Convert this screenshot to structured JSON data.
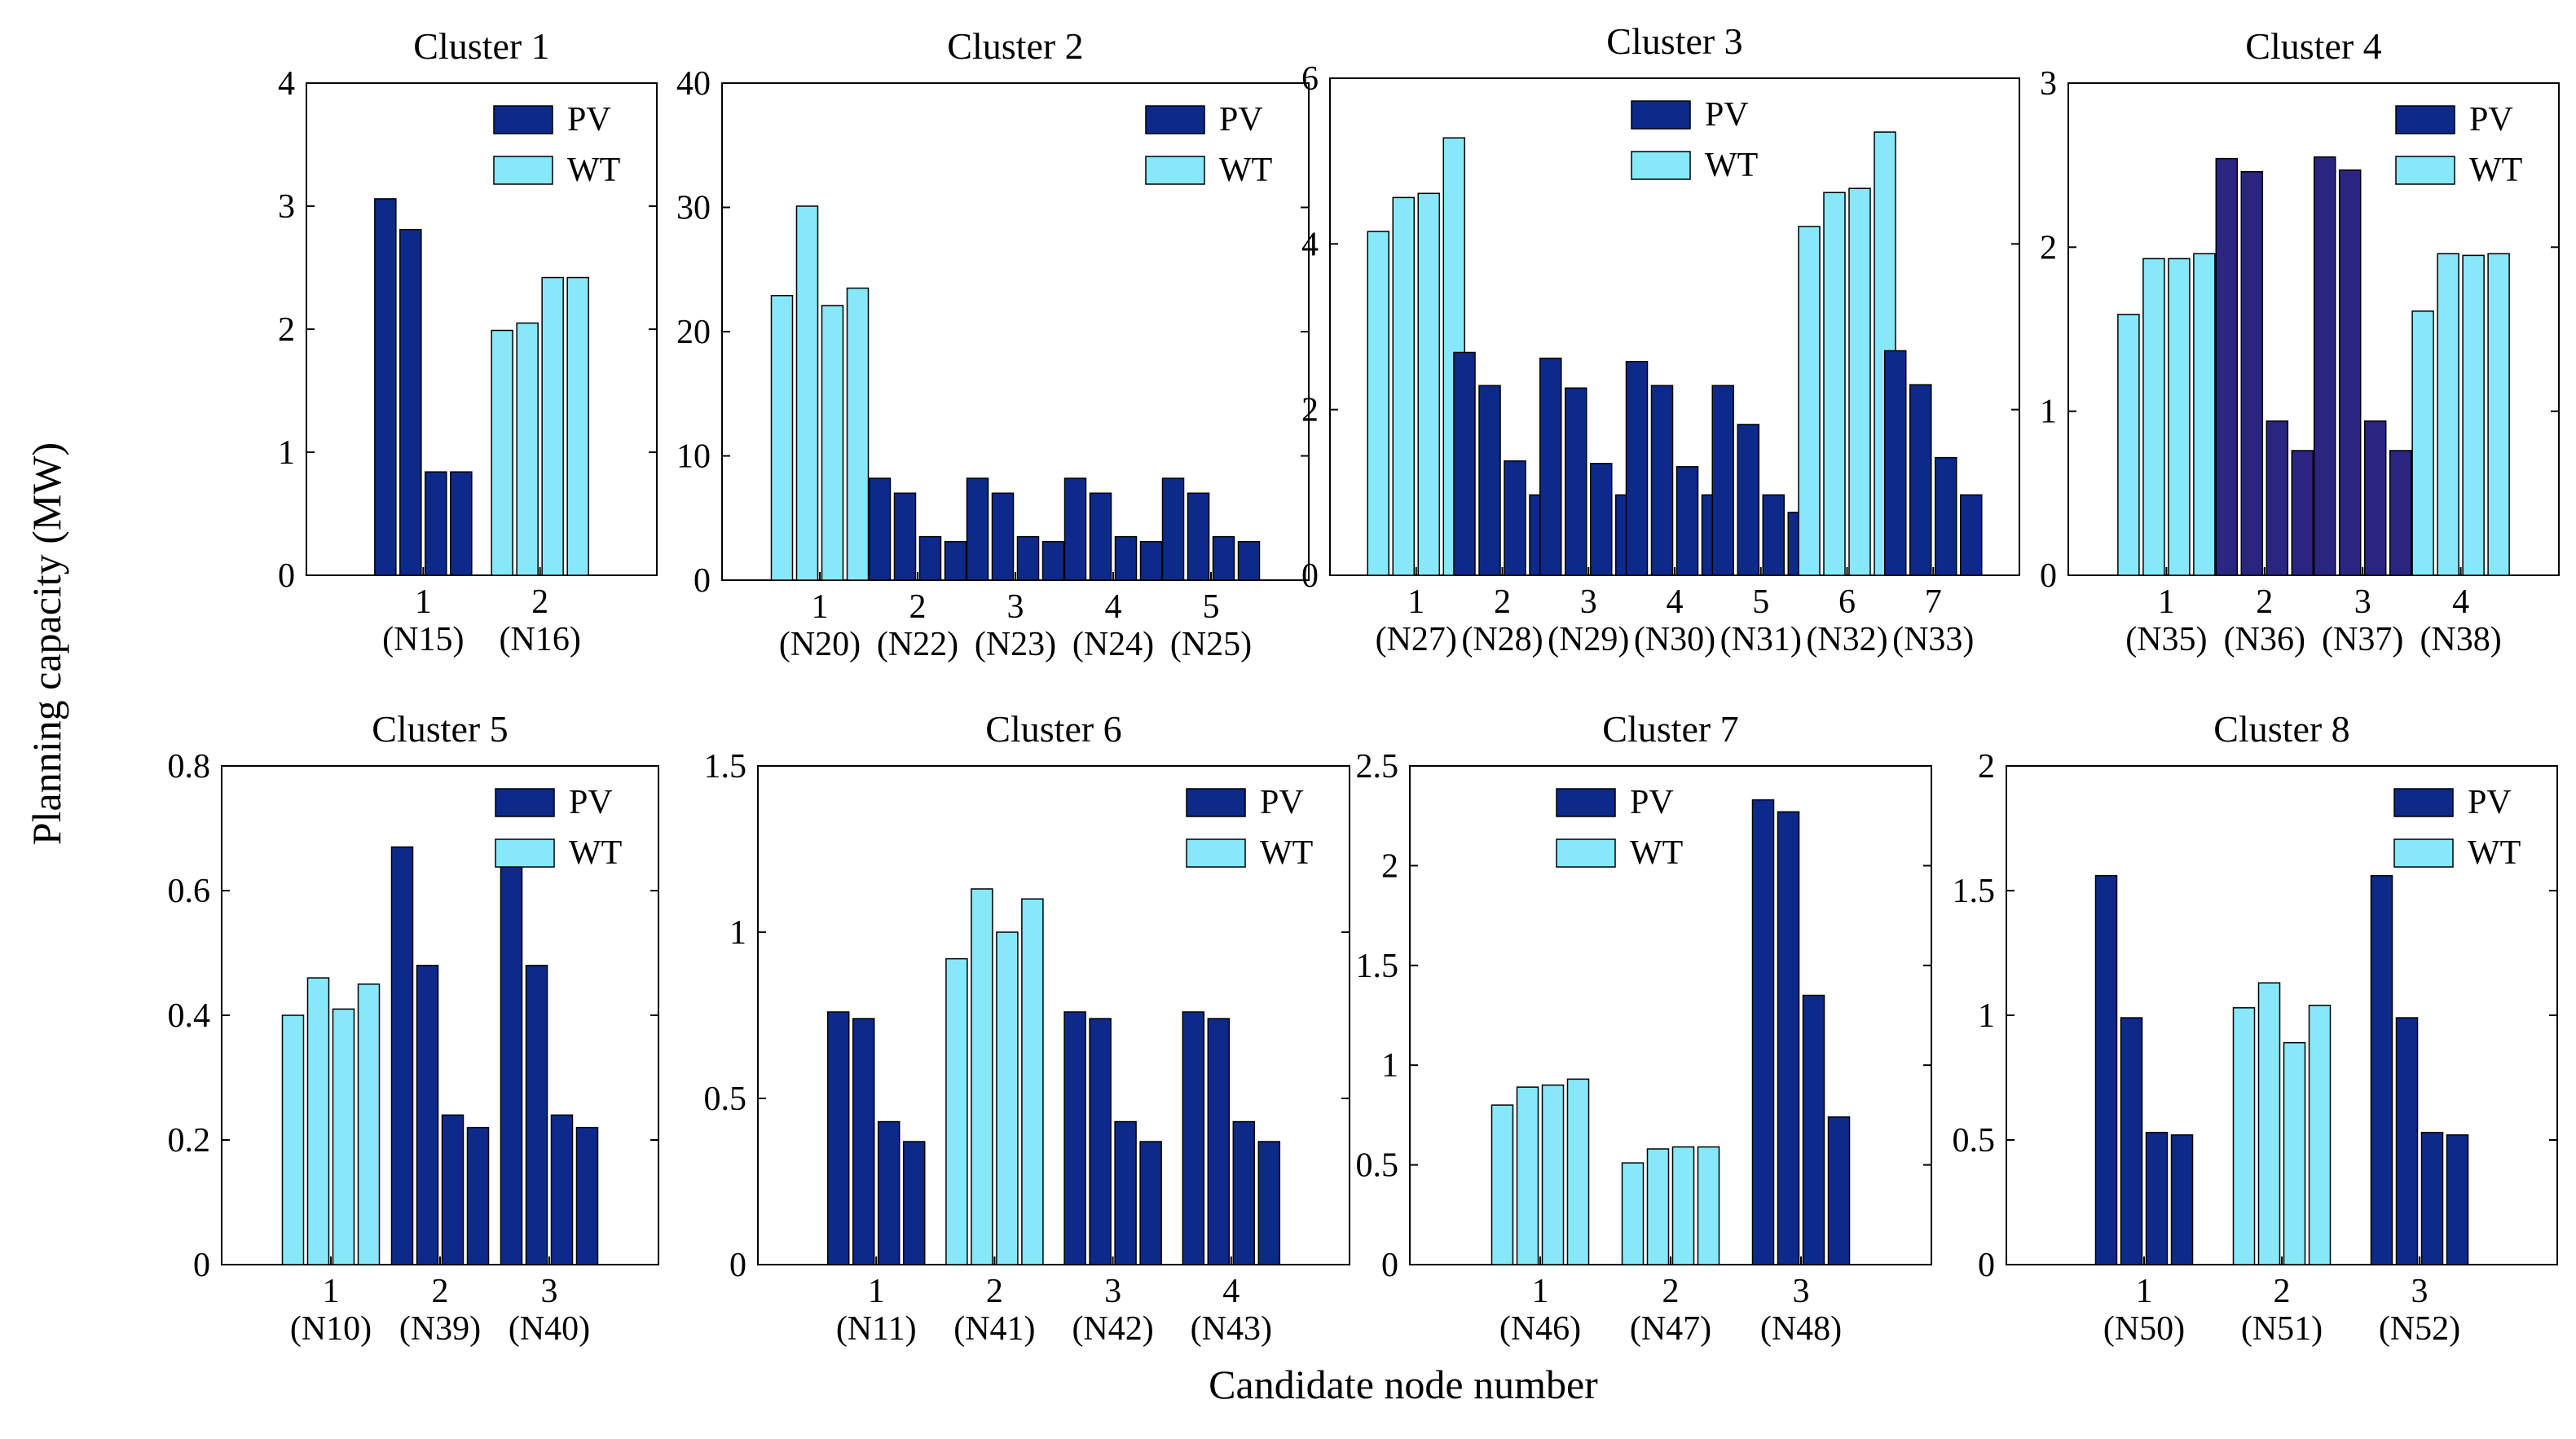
{
  "figure": {
    "ylabel": "Planning capacity (MW)",
    "xlabel": "Candidate node number"
  },
  "colors": {
    "PV": "#0d2a8a",
    "PV_alt": "#2a2580",
    "WT": "#86e8f8",
    "frame": "#000000"
  },
  "chart_data": [
    {
      "type": "bar",
      "title": "Cluster 1",
      "ylim": [
        0,
        4
      ],
      "yticks": [
        "0",
        "1",
        "2",
        "3",
        "4"
      ],
      "legend": [
        "PV",
        "WT"
      ],
      "legend_position": "top-right",
      "groups": [
        {
          "tick": "1",
          "node": "(N15)",
          "kind": "PV",
          "values": [
            3.06,
            2.81,
            0.84,
            0.84
          ]
        },
        {
          "tick": "2",
          "node": "(N16)",
          "kind": "WT",
          "values": [
            1.99,
            2.05,
            2.42,
            2.42
          ]
        }
      ]
    },
    {
      "type": "bar",
      "title": "Cluster 2",
      "ylim": [
        0,
        40
      ],
      "yticks": [
        "0",
        "10",
        "20",
        "30",
        "40"
      ],
      "legend": [
        "PV",
        "WT"
      ],
      "legend_position": "top-right",
      "groups": [
        {
          "tick": "1",
          "node": "(N20)",
          "kind": "WT",
          "values": [
            22.9,
            30.1,
            22.1,
            23.5
          ]
        },
        {
          "tick": "2",
          "node": "(N22)",
          "kind": "PV",
          "values": [
            8.2,
            7.0,
            3.5,
            3.1
          ]
        },
        {
          "tick": "3",
          "node": "(N23)",
          "kind": "PV",
          "values": [
            8.2,
            7.0,
            3.5,
            3.1
          ]
        },
        {
          "tick": "4",
          "node": "(N24)",
          "kind": "PV",
          "values": [
            8.2,
            7.0,
            3.5,
            3.1
          ]
        },
        {
          "tick": "5",
          "node": "(N25)",
          "kind": "PV",
          "values": [
            8.2,
            7.0,
            3.5,
            3.1
          ]
        }
      ]
    },
    {
      "type": "bar",
      "title": "Cluster 3",
      "ylim": [
        0,
        6
      ],
      "yticks": [
        "0",
        "2",
        "4",
        "6"
      ],
      "legend": [
        "PV",
        "WT"
      ],
      "legend_position": "top-center",
      "groups": [
        {
          "tick": "1",
          "node": "(N27)",
          "kind": "WT",
          "values": [
            4.15,
            4.56,
            4.61,
            5.28
          ]
        },
        {
          "tick": "2",
          "node": "(N28)",
          "kind": "PV",
          "values": [
            2.69,
            2.29,
            1.38,
            0.97
          ]
        },
        {
          "tick": "3",
          "node": "(N29)",
          "kind": "PV",
          "values": [
            2.62,
            2.26,
            1.35,
            0.97
          ]
        },
        {
          "tick": "4",
          "node": "(N30)",
          "kind": "PV",
          "values": [
            2.58,
            2.29,
            1.31,
            0.97
          ]
        },
        {
          "tick": "5",
          "node": "(N31)",
          "kind": "PV",
          "values": [
            2.29,
            1.82,
            0.97,
            0.76
          ]
        },
        {
          "tick": "6",
          "node": "(N32)",
          "kind": "WT",
          "values": [
            4.21,
            4.62,
            4.67,
            5.35
          ]
        },
        {
          "tick": "7",
          "node": "(N33)",
          "kind": "PV",
          "values": [
            2.71,
            2.3,
            1.42,
            0.97
          ]
        }
      ]
    },
    {
      "type": "bar",
      "title": "Cluster 4",
      "ylim": [
        0,
        3
      ],
      "yticks": [
        "0",
        "1",
        "2",
        "3"
      ],
      "legend": [
        "PV",
        "WT"
      ],
      "legend_position": "top-right",
      "groups": [
        {
          "tick": "1",
          "node": "(N35)",
          "kind": "WT",
          "values": [
            1.59,
            1.93,
            1.93,
            1.96
          ]
        },
        {
          "tick": "2",
          "node": "(N36)",
          "kind": "PV",
          "values": [
            2.54,
            2.46,
            0.94,
            0.76
          ],
          "alt": true
        },
        {
          "tick": "3",
          "node": "(N37)",
          "kind": "PV",
          "values": [
            2.55,
            2.47,
            0.94,
            0.76
          ],
          "alt": true
        },
        {
          "tick": "4",
          "node": "(N38)",
          "kind": "WT",
          "values": [
            1.61,
            1.96,
            1.95,
            1.96
          ]
        }
      ]
    },
    {
      "type": "bar",
      "title": "Cluster 5",
      "ylim": [
        0,
        0.8
      ],
      "yticks": [
        "0",
        "0.2",
        "0.4",
        "0.6",
        "0.8"
      ],
      "legend": [
        "PV",
        "WT"
      ],
      "legend_position": "top-right",
      "groups": [
        {
          "tick": "1",
          "node": "(N10)",
          "kind": "WT",
          "values": [
            0.4,
            0.46,
            0.41,
            0.45
          ]
        },
        {
          "tick": "2",
          "node": "(N39)",
          "kind": "PV",
          "values": [
            0.67,
            0.48,
            0.24,
            0.22
          ]
        },
        {
          "tick": "3",
          "node": "(N40)",
          "kind": "PV",
          "values": [
            0.67,
            0.48,
            0.24,
            0.22
          ]
        }
      ]
    },
    {
      "type": "bar",
      "title": "Cluster 6",
      "ylim": [
        0,
        1.5
      ],
      "yticks": [
        "0",
        "0.5",
        "1",
        "1.5"
      ],
      "legend": [
        "PV",
        "WT"
      ],
      "legend_position": "top-right",
      "groups": [
        {
          "tick": "1",
          "node": "(N11)",
          "kind": "PV",
          "values": [
            0.76,
            0.74,
            0.43,
            0.37
          ]
        },
        {
          "tick": "2",
          "node": "(N41)",
          "kind": "WT",
          "values": [
            0.92,
            1.13,
            1.0,
            1.1
          ]
        },
        {
          "tick": "3",
          "node": "(N42)",
          "kind": "PV",
          "values": [
            0.76,
            0.74,
            0.43,
            0.37
          ]
        },
        {
          "tick": "4",
          "node": "(N43)",
          "kind": "PV",
          "values": [
            0.76,
            0.74,
            0.43,
            0.37
          ]
        }
      ]
    },
    {
      "type": "bar",
      "title": "Cluster 7",
      "ylim": [
        0,
        2.5
      ],
      "yticks": [
        "0",
        "0.5",
        "1",
        "1.5",
        "2",
        "2.5"
      ],
      "legend": [
        "PV",
        "WT"
      ],
      "legend_position": "top-left",
      "groups": [
        {
          "tick": "1",
          "node": "(N46)",
          "kind": "WT",
          "values": [
            0.8,
            0.89,
            0.9,
            0.93
          ]
        },
        {
          "tick": "2",
          "node": "(N47)",
          "kind": "WT",
          "values": [
            0.51,
            0.58,
            0.59,
            0.59
          ]
        },
        {
          "tick": "3",
          "node": "(N48)",
          "kind": "PV",
          "values": [
            2.33,
            2.27,
            1.35,
            0.74
          ]
        }
      ]
    },
    {
      "type": "bar",
      "title": "Cluster 8",
      "ylim": [
        0,
        2
      ],
      "yticks": [
        "0",
        "0.5",
        "1",
        "1.5",
        "2"
      ],
      "legend": [
        "PV",
        "WT"
      ],
      "legend_position": "top-right",
      "groups": [
        {
          "tick": "1",
          "node": "(N50)",
          "kind": "PV",
          "values": [
            1.56,
            0.99,
            0.53,
            0.52
          ]
        },
        {
          "tick": "2",
          "node": "(N51)",
          "kind": "WT",
          "values": [
            1.03,
            1.13,
            0.89,
            1.04
          ]
        },
        {
          "tick": "3",
          "node": "(N52)",
          "kind": "PV",
          "values": [
            1.56,
            0.99,
            0.53,
            0.52
          ]
        }
      ]
    }
  ]
}
